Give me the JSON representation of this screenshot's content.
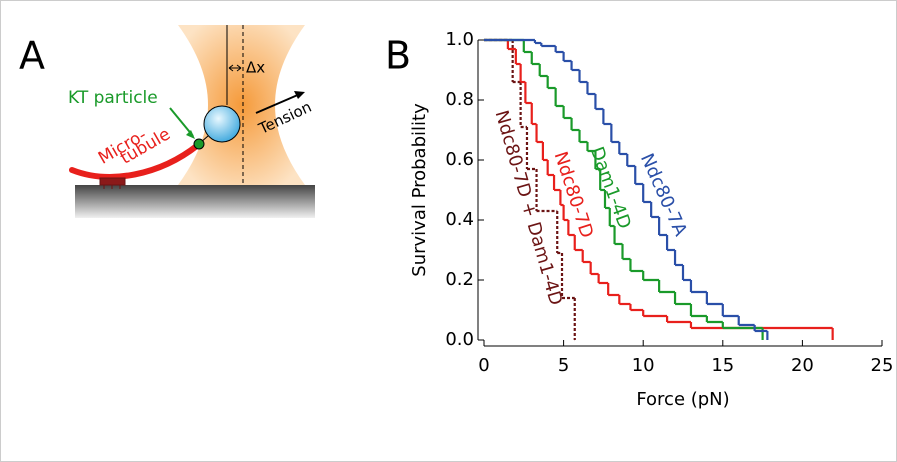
{
  "diagram": {
    "panel_label": "A",
    "particle_label": "KT particle",
    "microtubule_label_1": "Micro-",
    "microtubule_label_2": "tubule",
    "displacement_label": "Δx",
    "tension_label": "Tension"
  },
  "chart_data": {
    "type": "line",
    "panel_label": "B",
    "step": true,
    "x_label": "Force (pN)",
    "y_label": "Survival Probability",
    "xlim": [
      0,
      25
    ],
    "ylim": [
      0,
      1.0
    ],
    "xticks": [
      0,
      5,
      10,
      15,
      20,
      25
    ],
    "yticks": [
      {
        "value": 0,
        "label": "0.0"
      },
      {
        "value": 0.2,
        "label": "0.2"
      },
      {
        "value": 0.4,
        "label": "0.4"
      },
      {
        "value": 0.6,
        "label": "0.6"
      },
      {
        "value": 0.8,
        "label": "0.8"
      },
      {
        "value": 1.0,
        "label": "1.0"
      }
    ],
    "series": [
      {
        "name": "Ndc80-7D + Dam1-4D",
        "color": "#6b1414",
        "dash": true,
        "x": [
          0,
          1.8,
          2.3,
          2.7,
          3.3,
          4.6,
          4.9,
          5.7
        ],
        "values": [
          1.0,
          0.86,
          0.71,
          0.57,
          0.43,
          0.29,
          0.14,
          0
        ]
      },
      {
        "name": "Ndc80-7D",
        "color": "#e8201c",
        "dash": false,
        "x": [
          0,
          1.5,
          2.0,
          2.3,
          2.6,
          3.0,
          3.3,
          3.7,
          4.0,
          4.4,
          4.8,
          5.0,
          5.3,
          5.7,
          6.2,
          6.7,
          7.2,
          7.8,
          8.5,
          9.2,
          10,
          11.5,
          13,
          21.9
        ],
        "values": [
          1.0,
          0.97,
          0.92,
          0.86,
          0.79,
          0.72,
          0.66,
          0.6,
          0.55,
          0.5,
          0.45,
          0.4,
          0.35,
          0.3,
          0.26,
          0.22,
          0.19,
          0.15,
          0.12,
          0.1,
          0.08,
          0.06,
          0.04,
          0
        ]
      },
      {
        "name": "Dam1-4D",
        "color": "#1a9a2a",
        "dash": false,
        "x": [
          0,
          2.5,
          3.0,
          3.5,
          4.0,
          4.5,
          5.0,
          5.5,
          6.0,
          6.5,
          7.0,
          7.3,
          7.6,
          7.9,
          8.2,
          8.7,
          9.2,
          10,
          11,
          12,
          13,
          14,
          15,
          17.5
        ],
        "values": [
          1.0,
          0.96,
          0.92,
          0.88,
          0.84,
          0.78,
          0.74,
          0.7,
          0.66,
          0.63,
          0.57,
          0.5,
          0.44,
          0.38,
          0.32,
          0.27,
          0.23,
          0.2,
          0.16,
          0.12,
          0.08,
          0.06,
          0.04,
          0
        ]
      },
      {
        "name": "Ndc80-7A",
        "color": "#2a4fa8",
        "dash": false,
        "x": [
          0,
          3.2,
          3.6,
          4.5,
          5.0,
          5.5,
          6.0,
          6.5,
          7.0,
          7.5,
          8.0,
          8.5,
          9.0,
          9.5,
          10,
          10.5,
          11,
          11.5,
          12,
          12.5,
          13,
          14,
          15,
          16,
          17,
          17.8
        ],
        "values": [
          1.0,
          0.99,
          0.98,
          0.96,
          0.93,
          0.9,
          0.86,
          0.82,
          0.77,
          0.72,
          0.66,
          0.62,
          0.58,
          0.52,
          0.46,
          0.41,
          0.35,
          0.3,
          0.25,
          0.2,
          0.16,
          0.12,
          0.08,
          0.05,
          0.03,
          0
        ]
      }
    ]
  }
}
